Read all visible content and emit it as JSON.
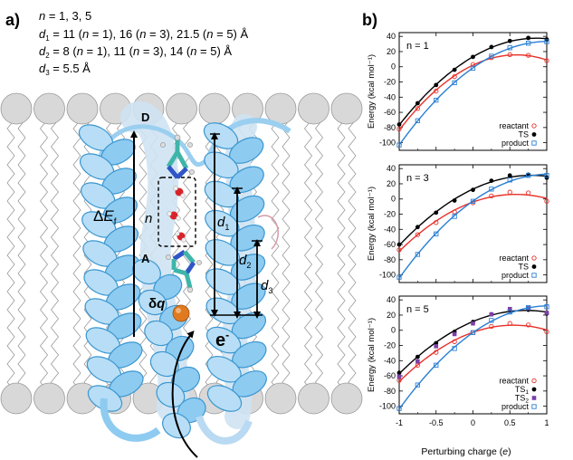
{
  "panel_a": {
    "label": "a)",
    "info_lines": [
      "n = 1, 3, 5",
      "d1 = 11 (n = 1), 16 (n = 3), 21.5 (n = 5) Å",
      "d2 = 8 (n = 1), 11 (n = 3), 14 (n = 5) Å",
      "d3 = 5.5 Å"
    ],
    "labels": {
      "donor": "D",
      "acceptor": "A",
      "n": "n",
      "delta_e_f": "ΔEf",
      "delta_q": "δq",
      "electron": "e⁻",
      "d1": "d1",
      "d2": "d2",
      "d3": "d3"
    },
    "colors": {
      "helix": "#8ecbf0",
      "helix_dark": "#3a96d0",
      "membrane": "#d8d8d8",
      "iron": "#e07a20"
    }
  },
  "panel_b": {
    "label": "b)",
    "xlabel": "Perturbing charge (e)",
    "ylabel": "Energy (kcal mol⁻¹)",
    "xticks": [
      "-1",
      "-0.5",
      "0",
      "0.5",
      "1"
    ],
    "yticks": [
      "40",
      "20",
      "0",
      "-20",
      "-40",
      "-60",
      "-80",
      "-100"
    ],
    "colors": {
      "reactant": "#e8312a",
      "ts": "#000000",
      "ts2": "#7b3fa6",
      "product": "#2a7fd4"
    }
  },
  "chart_data": [
    {
      "type": "scatter",
      "title": "n = 1",
      "xlabel": "Perturbing charge (e)",
      "ylabel": "Energy (kcal mol⁻¹)",
      "xlim": [
        -1,
        1
      ],
      "ylim": [
        -110,
        45
      ],
      "legend": "bottom-right",
      "x": [
        -1,
        -0.75,
        -0.5,
        -0.25,
        0,
        0.25,
        0.5,
        0.75,
        1
      ],
      "series": [
        {
          "name": "reactant",
          "marker": "open-circle",
          "values": [
            -82,
            -55,
            -32,
            -13,
            3,
            12,
            16,
            15,
            8
          ]
        },
        {
          "name": "TS",
          "marker": "filled-circle",
          "values": [
            -76,
            -48,
            -24,
            -4,
            13,
            26,
            34,
            38,
            36
          ]
        },
        {
          "name": "product",
          "marker": "open-square",
          "values": [
            -103,
            -71,
            -44,
            -21,
            -2,
            14,
            25,
            31,
            33
          ]
        }
      ]
    },
    {
      "type": "scatter",
      "title": "n = 3",
      "xlabel": "Perturbing charge (e)",
      "ylabel": "Energy (kcal mol⁻¹)",
      "xlim": [
        -1,
        1
      ],
      "ylim": [
        -110,
        45
      ],
      "legend": "bottom-right",
      "x": [
        -1,
        -0.75,
        -0.5,
        -0.25,
        0,
        0.25,
        0.5,
        0.75,
        1
      ],
      "series": [
        {
          "name": "reactant",
          "marker": "open-circle",
          "values": [
            -67,
            -47,
            -31,
            -17,
            -5,
            4,
            9,
            8,
            -3
          ]
        },
        {
          "name": "TS",
          "marker": "filled-circle",
          "values": [
            -60,
            -37,
            -18,
            -2,
            12,
            24,
            31,
            32,
            28
          ]
        },
        {
          "name": "product",
          "marker": "open-square",
          "values": [
            -103,
            -73,
            -46,
            -23,
            -3,
            13,
            25,
            31,
            31
          ]
        }
      ]
    },
    {
      "type": "scatter",
      "title": "n = 5",
      "xlabel": "Perturbing charge (e)",
      "ylabel": "Energy (kcal mol⁻¹)",
      "xlim": [
        -1,
        1
      ],
      "ylim": [
        -110,
        45
      ],
      "legend": "bottom-right",
      "x": [
        -1,
        -0.75,
        -0.5,
        -0.25,
        0,
        0.25,
        0.5,
        0.75,
        1
      ],
      "series": [
        {
          "name": "reactant",
          "marker": "open-circle",
          "values": [
            -66,
            -46,
            -29,
            -15,
            -3,
            5,
            9,
            7,
            -2
          ]
        },
        {
          "name": "TS1",
          "marker": "filled-circle",
          "values": [
            -56,
            -35,
            -17,
            -2,
            11,
            21,
            27,
            27,
            22
          ]
        },
        {
          "name": "TS2",
          "marker": "filled-square",
          "values": [
            -61,
            -41,
            -21,
            -5,
            9,
            21,
            28,
            29,
            23
          ]
        },
        {
          "name": "product",
          "marker": "open-square",
          "values": [
            -103,
            -72,
            -46,
            -24,
            -3,
            13,
            24,
            30,
            31
          ]
        }
      ]
    }
  ]
}
